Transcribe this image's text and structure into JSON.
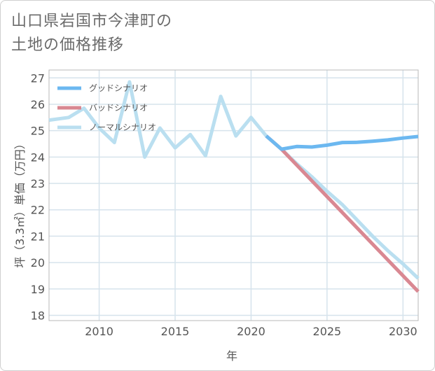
{
  "title_lines": [
    "山口県岩国市今津町の",
    "土地の価格推移"
  ],
  "chart_data": {
    "type": "line",
    "xlabel": "年",
    "ylabel": "坪（3.3㎡）単価（万円）",
    "xlim": [
      2006.7,
      2031
    ],
    "ylim": [
      17.8,
      27.3
    ],
    "x_ticks": [
      2010,
      2015,
      2020,
      2025,
      2030
    ],
    "y_ticks": [
      18,
      19,
      20,
      21,
      22,
      23,
      24,
      25,
      26,
      27
    ],
    "grid": true,
    "legend_position": "top-left",
    "series": [
      {
        "name": "グッドシナリオ",
        "color": "#6cb8f0",
        "x": [
          2021,
          2022,
          2023,
          2024,
          2025,
          2026,
          2027,
          2028,
          2029,
          2030,
          2031
        ],
        "y": [
          24.8,
          24.3,
          24.4,
          24.38,
          24.45,
          24.55,
          24.56,
          24.6,
          24.65,
          24.72,
          24.78
        ]
      },
      {
        "name": "バッドシナリオ",
        "color": "#d98892",
        "x": [
          2021,
          2022,
          2023,
          2024,
          2025,
          2026,
          2027,
          2028,
          2029,
          2030,
          2031
        ],
        "y": [
          24.8,
          24.3,
          23.7,
          23.1,
          22.5,
          21.9,
          21.3,
          20.7,
          20.1,
          19.5,
          18.9
        ]
      },
      {
        "name": "ノーマルシナリオ",
        "color": "#badff0",
        "x": [
          2006.7,
          2008,
          2009,
          2010,
          2011,
          2012,
          2013,
          2014,
          2015,
          2016,
          2017,
          2018,
          2019,
          2020,
          2021,
          2022,
          2023,
          2024,
          2025,
          2026,
          2027,
          2028,
          2029,
          2030,
          2031
        ],
        "y": [
          25.4,
          25.5,
          25.85,
          25.1,
          24.55,
          26.85,
          24.0,
          25.1,
          24.35,
          24.85,
          24.05,
          26.3,
          24.8,
          25.5,
          24.8,
          24.3,
          23.75,
          23.25,
          22.7,
          22.2,
          21.6,
          21.0,
          20.45,
          19.95,
          19.4
        ]
      }
    ]
  }
}
